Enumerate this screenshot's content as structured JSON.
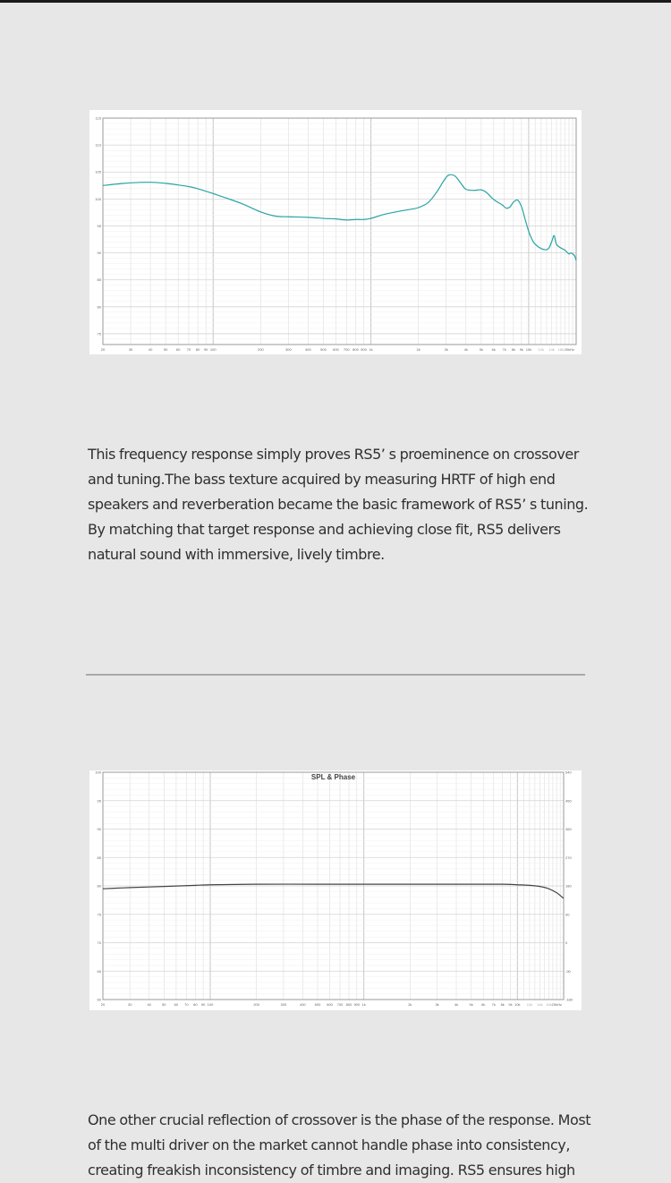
{
  "chart_data": [
    {
      "type": "line",
      "title": "",
      "xlabel": "",
      "ylabel": "",
      "x_scale": "log",
      "xlim": [
        20,
        20000
      ],
      "ylim": [
        73,
        115
      ],
      "grid": true,
      "legend": "none",
      "y_ticks": [
        "115",
        "110",
        "105",
        "100",
        "95",
        "90",
        "85",
        "80",
        "75"
      ],
      "x_ticks": [
        "20",
        "30",
        "40",
        "50",
        "60",
        "70",
        "80",
        "90",
        "100",
        "200",
        "300",
        "400",
        "500",
        "600",
        "700",
        "800",
        "900",
        "1k",
        "2k",
        "3k",
        "4k",
        "5k",
        "6k",
        "7k",
        "8k",
        "9k",
        "10k",
        "12k",
        "14k",
        "16k",
        "20kHz"
      ],
      "colors": {
        "series": "#2aa3a3",
        "grid": "#dedede",
        "axis": "#9a9a9a"
      },
      "series": [
        {
          "x": [
            20,
            25,
            30,
            40,
            50,
            60,
            70,
            80,
            100,
            150,
            200,
            250,
            300,
            400,
            500,
            600,
            700,
            800,
            900,
            1000,
            1200,
            1500,
            1800,
            2000,
            2300,
            2600,
            2900,
            3100,
            3400,
            3700,
            4000,
            4500,
            5000,
            5400,
            5800,
            6200,
            6800,
            7200,
            7600,
            8000,
            8500,
            9000,
            9500,
            10000,
            10500,
            11000,
            12000,
            13000,
            13500,
            14000,
            14500,
            15000,
            16000,
            17000,
            18000,
            18500,
            19500,
            20000
          ],
          "values": [
            102.5,
            102.8,
            103.0,
            103.1,
            102.9,
            102.6,
            102.3,
            101.9,
            101.0,
            99.2,
            97.6,
            96.8,
            96.7,
            96.6,
            96.4,
            96.3,
            96.1,
            96.2,
            96.2,
            96.4,
            97.1,
            97.7,
            98.1,
            98.4,
            99.3,
            101.2,
            103.4,
            104.4,
            104.3,
            103.0,
            101.8,
            101.6,
            101.7,
            101.2,
            100.3,
            99.6,
            98.9,
            98.3,
            98.5,
            99.4,
            99.8,
            98.6,
            96.2,
            94.0,
            92.5,
            91.6,
            90.8,
            90.6,
            91.0,
            92.1,
            93.2,
            91.6,
            90.9,
            90.5,
            89.8,
            90.0,
            89.5,
            88.6
          ]
        }
      ]
    },
    {
      "type": "line",
      "title": "SPL & Phase",
      "xlabel": "",
      "ylabel": "",
      "x_scale": "log",
      "xlim": [
        20,
        20000
      ],
      "ylim": [
        60,
        100
      ],
      "grid": true,
      "legend": "none",
      "y_ticks": [
        "100",
        "95",
        "90",
        "85",
        "80",
        "75",
        "70",
        "65",
        "60"
      ],
      "y2_ticks": [
        "540",
        "450",
        "360",
        "270",
        "180",
        "90",
        "0",
        "-90",
        "-180"
      ],
      "x_ticks": [
        "20",
        "30",
        "40",
        "50",
        "60",
        "70",
        "80",
        "90",
        "100",
        "200",
        "300",
        "400",
        "500",
        "600",
        "700",
        "800",
        "900",
        "1k",
        "2k",
        "3k",
        "4k",
        "5k",
        "6k",
        "7k",
        "8k",
        "9k",
        "10k",
        "12k",
        "14k",
        "16k",
        "20kHz"
      ],
      "colors": {
        "series": "#444444",
        "grid": "#dedede",
        "axis": "#9a9a9a"
      },
      "series": [
        {
          "x": [
            20,
            30,
            50,
            80,
            100,
            200,
            500,
            1000,
            2000,
            5000,
            8000,
            10000,
            12000,
            14000,
            16000,
            18000,
            20000
          ],
          "values": [
            79.5,
            79.7,
            79.9,
            80.1,
            80.2,
            80.3,
            80.3,
            80.3,
            80.3,
            80.3,
            80.3,
            80.2,
            80.1,
            79.9,
            79.5,
            78.8,
            77.8
          ]
        }
      ]
    }
  ],
  "text": {
    "para1": "This frequency response simply proves RS5’ s proeminence on crossover and tuning.The bass texture acquired by measuring HRTF of high end speakers and reverberation became the basic framework of RS5’ s tuning. By matching that target response and achieving close fit, RS5 delivers natural sound with immersive, lively timbre.",
    "para2": "One other crucial reflection of crossover is the phase of the response. Most of the multi driver on the market cannot handle phase into consistency, creating freakish inconsistency of timbre and imaging. RS5 ensures high"
  }
}
